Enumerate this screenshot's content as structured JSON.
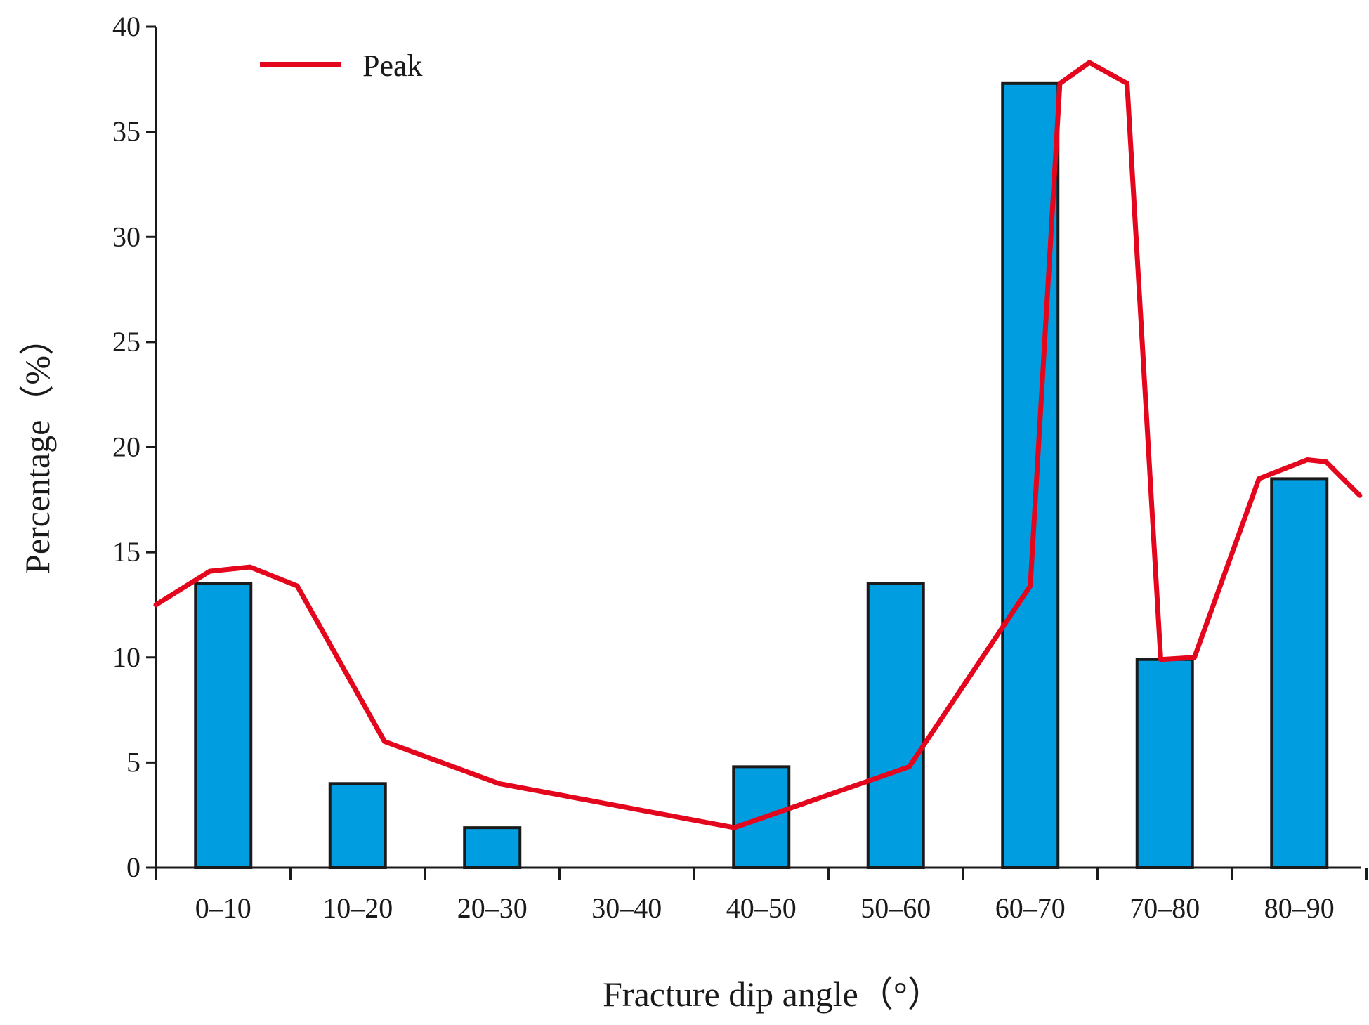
{
  "chart_data": {
    "type": "bar",
    "categories": [
      "0–10",
      "10–20",
      "20–30",
      "30–40",
      "40–50",
      "50–60",
      "60–70",
      "70–80",
      "80–90"
    ],
    "values": [
      13.5,
      4.0,
      1.9,
      0,
      4.8,
      13.5,
      37.3,
      9.9,
      18.5
    ],
    "peak_line": {
      "name": "Peak",
      "x": [
        0,
        0.4,
        0.7,
        1.05,
        1.7,
        2.55,
        4.3,
        5.6,
        6.5,
        6.72,
        6.94,
        7.22,
        7.47,
        7.72,
        8.2,
        8.56,
        8.7,
        8.95
      ],
      "y": [
        12.5,
        14.1,
        14.3,
        13.4,
        6.0,
        4.0,
        1.9,
        4.8,
        13.4,
        37.3,
        38.3,
        37.3,
        9.9,
        10.0,
        18.5,
        19.4,
        19.3,
        17.7
      ]
    },
    "xlabel": "Fracture dip angle（°）",
    "ylabel": "Percentage（%）",
    "ylim": [
      0,
      40
    ],
    "yticks": [
      0,
      5,
      10,
      15,
      20,
      25,
      30,
      35,
      40
    ],
    "legend_position": "top-left",
    "grid": false,
    "colors": {
      "bar": "#009ee1",
      "bar_edge": "#1a1a1a",
      "line": "#e3061c",
      "axis": "#1a1a1a"
    }
  }
}
